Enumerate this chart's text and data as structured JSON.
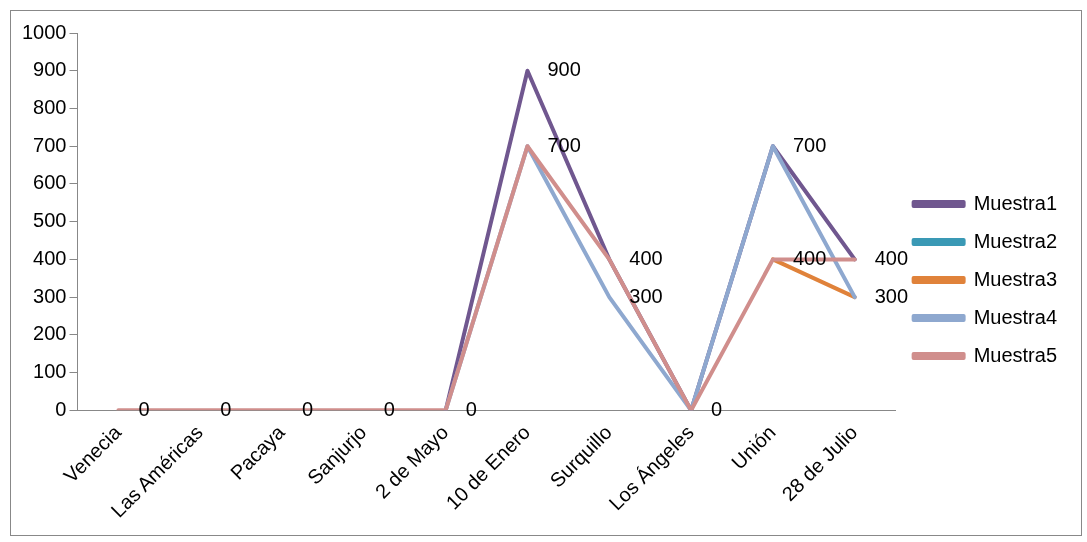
{
  "chart_data": {
    "type": "line",
    "categories": [
      "Venecia",
      "Las Américas",
      "Pacaya",
      "Sanjurjo",
      "2 de Mayo",
      "10 de Enero",
      "Surquillo",
      "Los Ángeles",
      "Unión",
      "28 de Julio"
    ],
    "series": [
      {
        "name": "Muestra1",
        "color": "#70578f",
        "values": [
          null,
          null,
          null,
          null,
          0,
          900,
          400,
          0,
          700,
          400
        ],
        "value_labels": [
          null,
          null,
          null,
          null,
          null,
          "900",
          null,
          null,
          "700",
          "400"
        ]
      },
      {
        "name": "Muestra2",
        "color": "#3a99b5",
        "values": [
          null,
          null,
          null,
          null,
          null,
          null,
          null,
          null,
          null,
          null
        ]
      },
      {
        "name": "Muestra3",
        "color": "#e0823a",
        "values": [
          null,
          null,
          null,
          null,
          null,
          null,
          null,
          null,
          400,
          300
        ]
      },
      {
        "name": "Muestra4",
        "color": "#8ea8cf",
        "values": [
          null,
          null,
          null,
          null,
          0,
          700,
          300,
          0,
          700,
          300
        ],
        "value_labels": [
          null,
          null,
          null,
          null,
          null,
          null,
          "300",
          null,
          null,
          "300"
        ]
      },
      {
        "name": "Muestra5",
        "color": "#d08e8c",
        "values": [
          0,
          0,
          0,
          0,
          0,
          700,
          400,
          0,
          400,
          400
        ],
        "value_labels": [
          "0",
          "0",
          "0",
          "0",
          "0",
          "700",
          "400",
          "0",
          "400",
          null
        ]
      }
    ],
    "ylim": [
      0,
      1000
    ],
    "yticks": [
      0,
      100,
      200,
      300,
      400,
      500,
      600,
      700,
      800,
      900,
      1000
    ],
    "grid": false,
    "legend": "right",
    "marker": "none",
    "line_style": "solid"
  }
}
